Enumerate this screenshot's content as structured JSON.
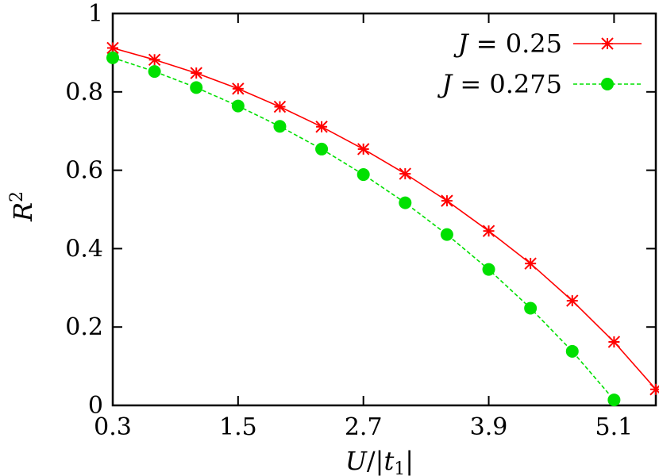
{
  "chart_data": {
    "type": "line",
    "xlabel": "U/|t1|",
    "ylabel": "R²",
    "xlim": [
      0.3,
      5.5
    ],
    "ylim": [
      0,
      1
    ],
    "xticks": [
      "0.3",
      "1.5",
      "2.7",
      "3.9",
      "5.1"
    ],
    "xtick_values": [
      0.3,
      1.5,
      2.7,
      3.9,
      5.1
    ],
    "yticks": [
      "0",
      "0.2",
      "0.4",
      "0.6",
      "0.8",
      "1"
    ],
    "ytick_values": [
      0,
      0.2,
      0.4,
      0.6,
      0.8,
      1
    ],
    "grid": false,
    "legend_position": "top-right",
    "series": [
      {
        "name": "J = 0.25",
        "color": "#ff0000",
        "marker": "asterisk",
        "line_style": "solid",
        "x": [
          0.3,
          0.7,
          1.1,
          1.5,
          1.9,
          2.3,
          2.7,
          3.1,
          3.5,
          3.9,
          4.3,
          4.7,
          5.1,
          5.5
        ],
        "y": [
          0.912,
          0.882,
          0.848,
          0.808,
          0.762,
          0.711,
          0.654,
          0.591,
          0.522,
          0.445,
          0.362,
          0.267,
          0.162,
          0.041
        ]
      },
      {
        "name": "J = 0.275",
        "color": "#00e000",
        "marker": "filled-circle",
        "line_style": "dashed",
        "x": [
          0.3,
          0.7,
          1.1,
          1.5,
          1.9,
          2.3,
          2.7,
          3.1,
          3.5,
          3.9,
          4.3,
          4.7,
          5.1
        ],
        "y": [
          0.887,
          0.852,
          0.811,
          0.764,
          0.712,
          0.654,
          0.589,
          0.517,
          0.436,
          0.347,
          0.248,
          0.138,
          0.014
        ]
      }
    ]
  }
}
